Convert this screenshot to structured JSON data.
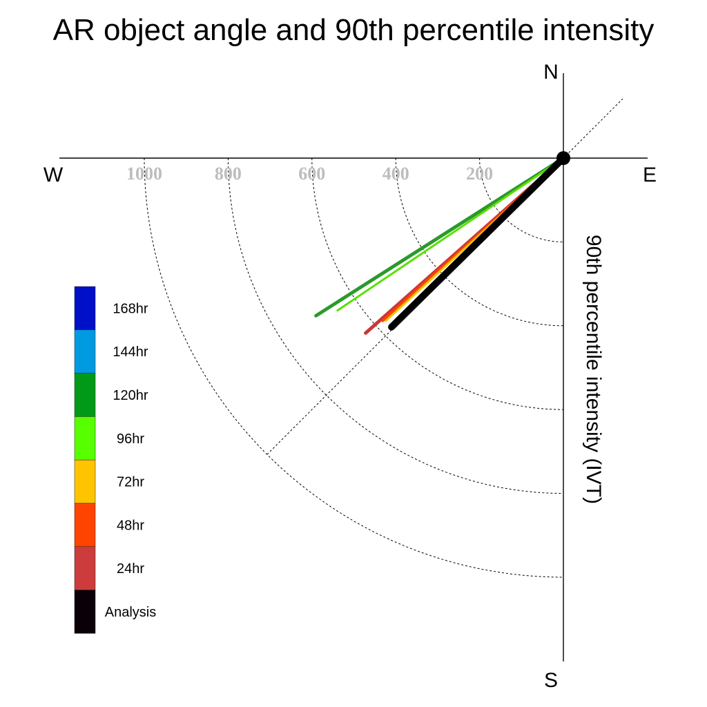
{
  "chart_data": {
    "type": "polar-vector",
    "title": "AR object angle and 90th percentile intensity",
    "ylabel": "90th percentile intensity (IVT)",
    "compass": {
      "north": "N",
      "south": "S",
      "east": "E",
      "west": "W"
    },
    "radial_ticks": [
      200,
      400,
      600,
      800,
      1000
    ],
    "radial_tick_labels": [
      "200",
      "400",
      "600",
      "800",
      "1000"
    ],
    "dashed_rings": [
      200,
      400,
      600,
      800,
      1000
    ],
    "rmax": 1000,
    "diagonal_reference": true,
    "legend": {
      "placement": "left",
      "entries": [
        {
          "label": "168hr",
          "color": "#0010c8"
        },
        {
          "label": "144hr",
          "color": "#009ae0"
        },
        {
          "label": "120hr",
          "color": "#009a18"
        },
        {
          "label": "96hr",
          "color": "#58ff00"
        },
        {
          "label": "72hr",
          "color": "#ffc400"
        },
        {
          "label": "48hr",
          "color": "#ff4400"
        },
        {
          "label": "24hr",
          "color": "#cc3c3c"
        },
        {
          "label": "Analysis",
          "color": "#0a0008"
        }
      ]
    },
    "series": [
      {
        "name": "120hr",
        "angle_deg_from_north_clockwise": 237.5,
        "intensity": 700,
        "color": "#2a9a2a",
        "width": 5
      },
      {
        "name": "96hr",
        "angle_deg_from_north_clockwise": 236.0,
        "intensity": 650,
        "color": "#58e000",
        "width": 3
      },
      {
        "name": "24hr",
        "angle_deg_from_north_clockwise": 228.5,
        "intensity": 630,
        "color": "#c83838",
        "width": 5
      },
      {
        "name": "48hr",
        "angle_deg_from_north_clockwise": 228.0,
        "intensity": 580,
        "color": "#ff4400",
        "width": 4
      },
      {
        "name": "72hr",
        "angle_deg_from_north_clockwise": 227.5,
        "intensity": 575,
        "color": "#ffc400",
        "width": 3
      },
      {
        "name": "Analysis",
        "angle_deg_from_north_clockwise": 225.5,
        "intensity": 575,
        "color": "#000000",
        "width": 10
      }
    ]
  }
}
